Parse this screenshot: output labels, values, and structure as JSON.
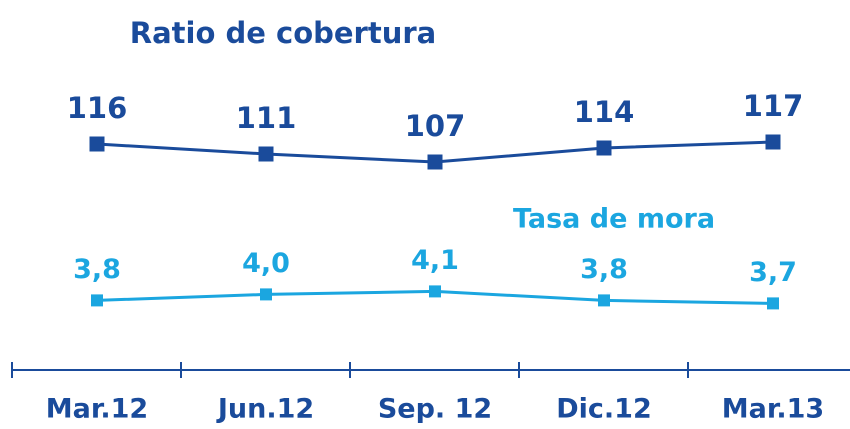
{
  "chart_data": {
    "type": "line",
    "categories": [
      "Mar.12",
      "Jun.12",
      "Sep. 12",
      "Dic.12",
      "Mar.13"
    ],
    "series": [
      {
        "name": "Ratio de cobertura",
        "color": "#1a4b9b",
        "values": [
          116,
          111,
          107,
          114,
          117
        ]
      },
      {
        "name": "Tasa de mora",
        "color": "#1ba6e0",
        "values": [
          3.8,
          4.0,
          4.1,
          3.8,
          3.7
        ],
        "value_labels": [
          "3,8",
          "4,0",
          "4,1",
          "3,8",
          "3,7"
        ]
      }
    ]
  }
}
